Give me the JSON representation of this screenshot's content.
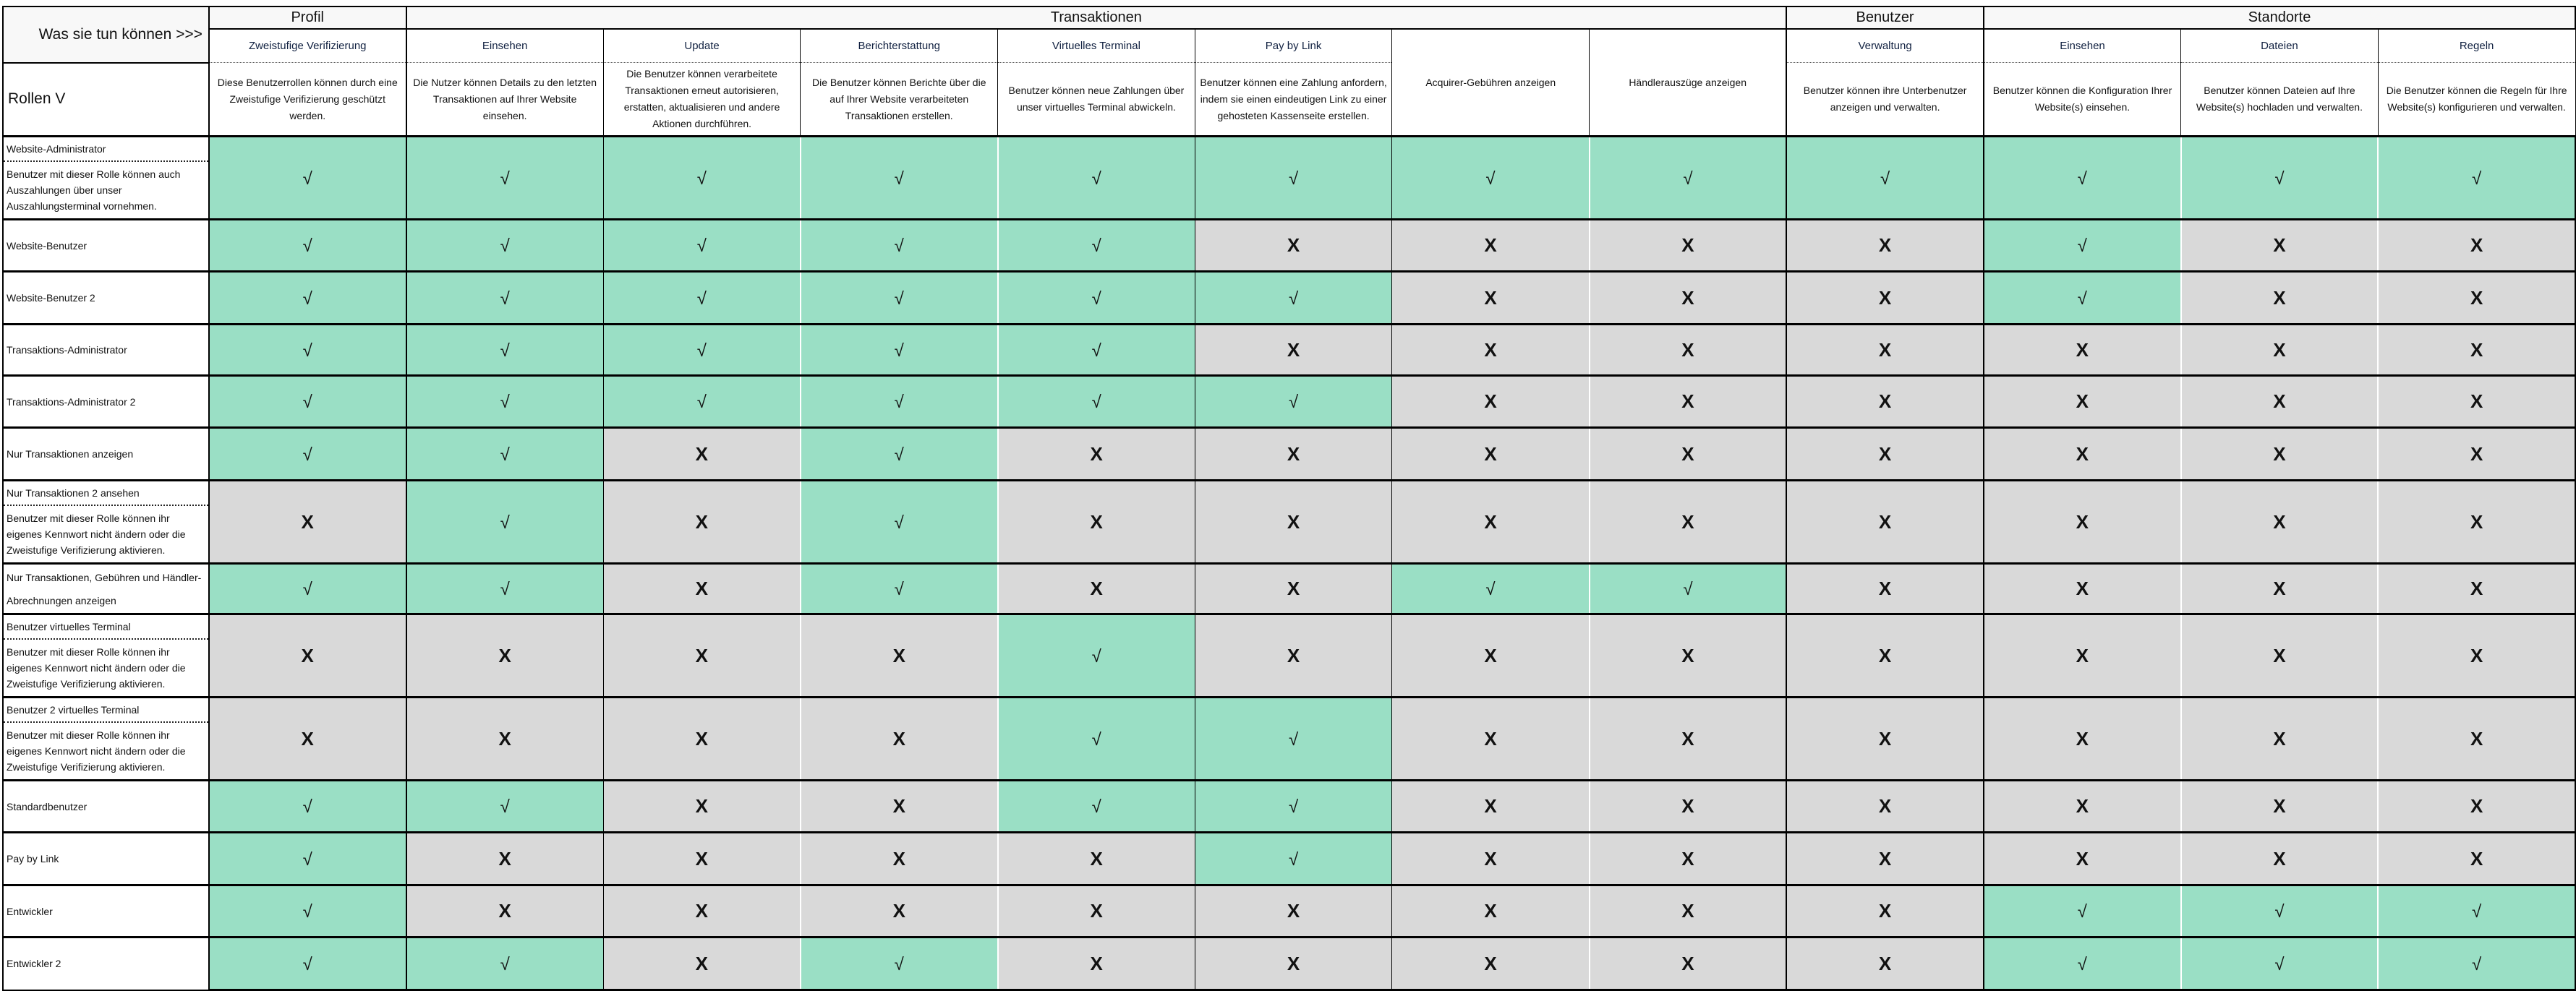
{
  "header": {
    "corner_label": "Was sie tun können >>>",
    "roles_label": "Rollen V",
    "groups": [
      {
        "label": "Profil",
        "span": 1
      },
      {
        "label": "Transaktionen",
        "span": 7
      },
      {
        "label": "Benutzer",
        "span": 1
      },
      {
        "label": "Standorte",
        "span": 3
      }
    ],
    "columns": [
      {
        "title": "Zweistufige Verifizierung",
        "description": "Diese Benutzerrollen können durch eine Zweistufige Verifizierung geschützt werden."
      },
      {
        "title": "Einsehen",
        "description": "Die Nutzer können Details zu den letzten Transaktionen auf Ihrer Website einsehen."
      },
      {
        "title": "Update",
        "description": "Die Benutzer können verarbeitete Transaktionen erneut autorisieren, erstatten, aktualisieren und andere Aktionen durchführen."
      },
      {
        "title": "Berichterstattung",
        "description": "Die Benutzer können Berichte über die auf Ihrer Website verarbeiteten Transaktionen erstellen."
      },
      {
        "title": "Virtuelles Terminal",
        "description": "Benutzer können neue Zahlungen über unser virtuelles Terminal abwickeln."
      },
      {
        "title": "Pay by Link",
        "description": "Benutzer können eine Zahlung anfordern, indem sie einen eindeutigen Link zu einer gehosteten Kassenseite erstellen."
      },
      {
        "title": "",
        "description": "Acquirer-Gebühren anzeigen"
      },
      {
        "title": "",
        "description": "Händlerauszüge anzeigen"
      },
      {
        "title": "Verwaltung",
        "description": "Benutzer können ihre Unterbenutzer anzeigen und verwalten."
      },
      {
        "title": "Einsehen",
        "description": "Benutzer können die Konfiguration Ihrer Website(s) einsehen."
      },
      {
        "title": "Dateien",
        "description": "Benutzer können Dateien auf Ihre Website(s) hochladen und verwalten."
      },
      {
        "title": "Regeln",
        "description": "Die Benutzer können die Regeln für Ihre Website(s) konfigurieren und verwalten."
      }
    ]
  },
  "symbols": {
    "allowed": "√",
    "denied": "X"
  },
  "colors": {
    "allowed": "#9adfc5",
    "denied": "#d9d9d9",
    "header": "#f8f8f8"
  },
  "roles": [
    {
      "name": "Website-Administrator",
      "description": "Benutzer mit dieser Rolle können auch Auszahlungen über unser Auszahlungsterminal vornehmen.",
      "permissions": [
        1,
        1,
        1,
        1,
        1,
        1,
        1,
        1,
        1,
        1,
        1,
        1
      ]
    },
    {
      "name": "Website-Benutzer",
      "description": "",
      "permissions": [
        1,
        1,
        1,
        1,
        1,
        0,
        0,
        0,
        0,
        1,
        0,
        0
      ]
    },
    {
      "name": "Website-Benutzer 2",
      "description": "",
      "permissions": [
        1,
        1,
        1,
        1,
        1,
        1,
        0,
        0,
        0,
        1,
        0,
        0
      ]
    },
    {
      "name": "Transaktions-Administrator",
      "description": "",
      "permissions": [
        1,
        1,
        1,
        1,
        1,
        0,
        0,
        0,
        0,
        0,
        0,
        0
      ]
    },
    {
      "name": "Transaktions-Administrator 2",
      "description": "",
      "permissions": [
        1,
        1,
        1,
        1,
        1,
        1,
        0,
        0,
        0,
        0,
        0,
        0
      ]
    },
    {
      "name": "Nur Transaktionen anzeigen",
      "description": "",
      "permissions": [
        1,
        1,
        0,
        1,
        0,
        0,
        0,
        0,
        0,
        0,
        0,
        0
      ]
    },
    {
      "name": "Nur Transaktionen 2 ansehen",
      "description": "Benutzer mit dieser Rolle können ihr eigenes Kennwort nicht ändern oder die Zweistufige Verifizierung aktivieren.",
      "permissions": [
        0,
        1,
        0,
        1,
        0,
        0,
        0,
        0,
        0,
        0,
        0,
        0
      ]
    },
    {
      "name": "Nur Transaktionen, Gebühren und Händler-Abrechnungen anzeigen",
      "description": "",
      "permissions": [
        1,
        1,
        0,
        1,
        0,
        0,
        1,
        1,
        0,
        0,
        0,
        0
      ]
    },
    {
      "name": "Benutzer virtuelles Terminal",
      "description": "Benutzer mit dieser Rolle können ihr eigenes Kennwort nicht ändern oder die Zweistufige Verifizierung aktivieren.",
      "permissions": [
        0,
        0,
        0,
        0,
        1,
        0,
        0,
        0,
        0,
        0,
        0,
        0
      ]
    },
    {
      "name": "Benutzer 2 virtuelles Terminal",
      "description": "Benutzer mit dieser Rolle können ihr eigenes Kennwort nicht ändern oder die Zweistufige Verifizierung aktivieren.",
      "permissions": [
        0,
        0,
        0,
        0,
        1,
        1,
        0,
        0,
        0,
        0,
        0,
        0
      ]
    },
    {
      "name": "Standardbenutzer",
      "description": "",
      "permissions": [
        1,
        1,
        0,
        0,
        1,
        1,
        0,
        0,
        0,
        0,
        0,
        0
      ]
    },
    {
      "name": "Pay by Link",
      "description": "",
      "permissions": [
        1,
        0,
        0,
        0,
        0,
        1,
        0,
        0,
        0,
        0,
        0,
        0
      ]
    },
    {
      "name": "Entwickler",
      "description": "",
      "permissions": [
        1,
        0,
        0,
        0,
        0,
        0,
        0,
        0,
        0,
        1,
        1,
        1
      ]
    },
    {
      "name": "Entwickler 2",
      "description": "",
      "permissions": [
        1,
        1,
        0,
        1,
        0,
        0,
        0,
        0,
        0,
        1,
        1,
        1
      ]
    }
  ]
}
